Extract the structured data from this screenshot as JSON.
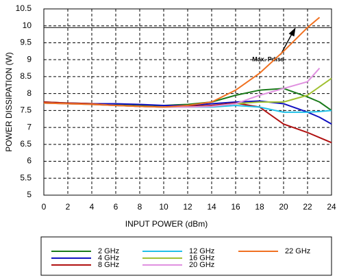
{
  "chart_data": {
    "type": "line",
    "xlabel": "INPUT POWER (dBm)",
    "ylabel": "POWER DISSIPATION (W)",
    "x": [
      0,
      2,
      4,
      6,
      8,
      10,
      12,
      14,
      16,
      18,
      20,
      22,
      23,
      24
    ],
    "series": [
      {
        "name": "2 GHz",
        "color": "#1a7a1a",
        "values": [
          7.75,
          7.72,
          7.7,
          7.68,
          7.65,
          7.65,
          7.68,
          7.75,
          7.95,
          8.1,
          8.15,
          7.9,
          7.75,
          7.5
        ]
      },
      {
        "name": "4 GHz",
        "color": "#1010c0",
        "values": [
          7.72,
          7.72,
          7.7,
          7.7,
          7.68,
          7.65,
          7.65,
          7.7,
          7.75,
          7.78,
          7.7,
          7.45,
          7.3,
          7.1
        ]
      },
      {
        "name": "8 GHz",
        "color": "#b01010",
        "values": [
          7.75,
          7.72,
          7.7,
          7.65,
          7.62,
          7.6,
          7.62,
          7.65,
          7.72,
          7.6,
          7.1,
          6.85,
          6.7,
          6.55
        ]
      },
      {
        "name": "12 GHz",
        "color": "#20c0e8",
        "values": [
          7.72,
          7.7,
          7.68,
          7.65,
          7.62,
          7.6,
          7.6,
          7.6,
          7.65,
          7.6,
          7.45,
          7.45,
          7.47,
          7.5
        ]
      },
      {
        "name": "16 GHz",
        "color": "#a0c030",
        "values": [
          7.72,
          7.7,
          7.68,
          7.65,
          7.62,
          7.6,
          7.6,
          7.62,
          7.7,
          7.75,
          7.75,
          7.95,
          8.2,
          8.45
        ]
      },
      {
        "name": "20 GHz",
        "color": "#e090e0",
        "values": [
          7.72,
          7.7,
          7.68,
          7.65,
          7.62,
          7.6,
          7.6,
          7.62,
          7.7,
          7.95,
          8.15,
          8.35,
          8.75,
          null
        ]
      },
      {
        "name": "22 GHz",
        "color": "#f07020",
        "values": [
          7.72,
          7.7,
          7.68,
          7.65,
          7.62,
          7.6,
          7.65,
          7.75,
          8.1,
          8.6,
          9.25,
          9.95,
          10.25,
          null
        ]
      }
    ],
    "xlim": [
      0,
      24
    ],
    "xticks": [
      0,
      2,
      4,
      6,
      8,
      10,
      12,
      14,
      16,
      18,
      20,
      22,
      24
    ],
    "ylim": [
      5,
      10.5
    ],
    "yticks": [
      5,
      5.5,
      6,
      6.5,
      7,
      7.5,
      8,
      8.5,
      9,
      9.5,
      10,
      10.5
    ],
    "grid": true,
    "hline": 9.95,
    "annotation": {
      "text": "Max. Pdiss",
      "x": 21,
      "y": 9.95
    },
    "legend": "bottom"
  }
}
